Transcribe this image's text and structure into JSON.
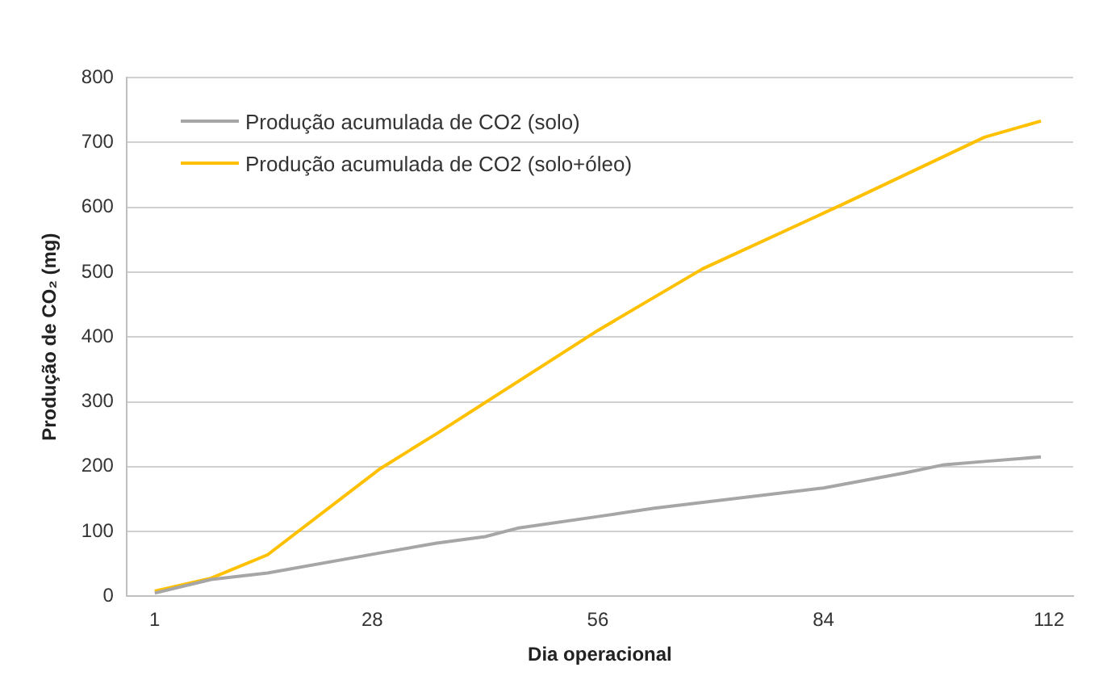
{
  "chart_data": {
    "type": "line",
    "xlabel": "Dia operacional",
    "ylabel": "Produção de CO₂ (mg)",
    "xlim": [
      -2.5,
      115
    ],
    "xticks": [
      1,
      28,
      56,
      84,
      112
    ],
    "ylim": [
      0,
      800
    ],
    "yticks": [
      0,
      100,
      200,
      300,
      400,
      500,
      600,
      700,
      800
    ],
    "grid": "y",
    "legend": "top left",
    "marker": "none",
    "line_style": "solid",
    "series": [
      {
        "name": "Produção acumulada de CO2 (solo)",
        "color": "#a6a6a6",
        "x": [
          1,
          8,
          15,
          29,
          36,
          42,
          46,
          56,
          63,
          84,
          94,
          99,
          104,
          111
        ],
        "values": [
          5,
          26,
          36,
          67,
          82,
          92,
          105,
          123,
          136,
          167,
          190,
          203,
          208,
          215
        ]
      },
      {
        "name": "Produção acumulada de CO2 (solo+óleo)",
        "color": "#ffc000",
        "x": [
          1,
          8,
          15,
          29,
          36,
          56,
          69,
          87,
          104,
          111
        ],
        "values": [
          8,
          28,
          64,
          197,
          251,
          410,
          505,
          608,
          708,
          733
        ]
      }
    ]
  }
}
